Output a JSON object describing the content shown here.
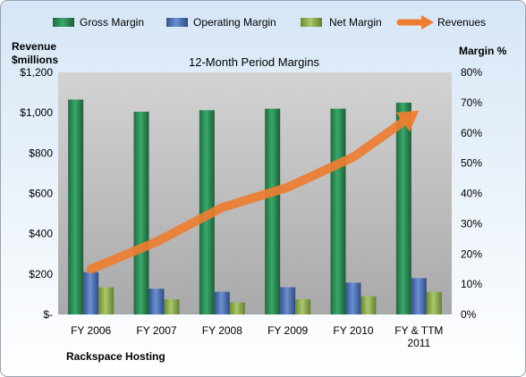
{
  "chart_data": {
    "type": "bar",
    "title": "12-Month Period Margins",
    "categories": [
      "FY 2006",
      "FY 2007",
      "FY 2008",
      "FY 2009",
      "FY 2010",
      "FY & TTM 2011"
    ],
    "category_lines": [
      [
        "FY 2006"
      ],
      [
        "FY 2007"
      ],
      [
        "FY 2008"
      ],
      [
        "FY 2009"
      ],
      [
        "FY 2010"
      ],
      [
        "FY & TTM",
        "2011"
      ]
    ],
    "series": [
      {
        "name": "Gross Margin",
        "axis": "right",
        "color": "#2e8b57",
        "values": [
          71,
          67,
          67.5,
          68,
          68,
          70
        ]
      },
      {
        "name": "Operating Margin",
        "axis": "right",
        "color": "#4a6fb5",
        "values": [
          14,
          8.5,
          7.5,
          9,
          10.5,
          12
        ]
      },
      {
        "name": "Net Margin",
        "axis": "right",
        "color": "#8fb050",
        "values": [
          9,
          5,
          4,
          5,
          6,
          7.5
        ]
      }
    ],
    "revenues": {
      "name": "Revenues",
      "axis": "left",
      "color": "#ed7d31",
      "values": [
        225,
        360,
        530,
        630,
        780,
        1010
      ]
    },
    "y_left": {
      "label_lines": [
        "Revenue",
        "$millions"
      ],
      "ticks": [
        "$-",
        "$200",
        "$400",
        "$600",
        "$800",
        "$1,000",
        "$1,200"
      ],
      "ylim": [
        0,
        1200
      ]
    },
    "y_right": {
      "label": "Margin %",
      "ticks": [
        "0%",
        "10%",
        "20%",
        "30%",
        "40%",
        "50%",
        "60%",
        "70%",
        "80%"
      ],
      "ylim": [
        0,
        80
      ]
    },
    "grid": false,
    "legend_position": "top"
  },
  "footer": {
    "company": "Rackspace Hosting"
  }
}
